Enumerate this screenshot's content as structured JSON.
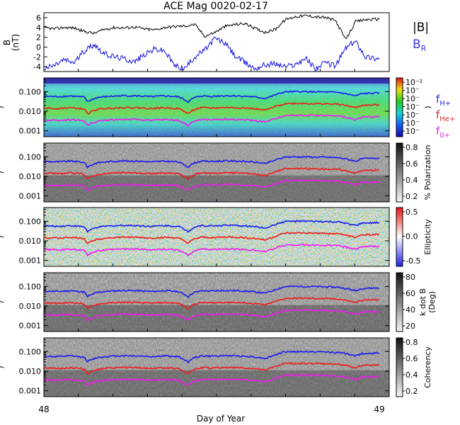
{
  "chart_data": [
    {
      "panel": "magnetic-field",
      "type": "line",
      "title": "ACE Mag 0020-02-17",
      "ylabel": "B (nT)",
      "ylim": [
        -5,
        7
      ],
      "yticks": [
        6,
        4,
        2,
        0,
        -2,
        -4
      ],
      "series": [
        {
          "name": "|B|",
          "color": "#000000",
          "x": [
            48.0,
            48.03,
            48.06,
            48.09,
            48.12,
            48.15,
            48.18,
            48.21,
            48.24,
            48.27,
            48.3,
            48.33,
            48.36,
            48.39,
            48.42,
            48.45,
            48.48,
            48.51,
            48.54,
            48.57,
            48.6,
            48.63,
            48.66,
            48.69,
            48.72,
            48.75,
            48.78,
            48.81,
            48.84,
            48.87,
            48.9,
            48.93,
            48.96,
            49.0
          ],
          "y": [
            4.0,
            3.7,
            4.0,
            3.9,
            3.2,
            2.8,
            3.6,
            4.0,
            3.9,
            4.1,
            3.7,
            3.5,
            4.0,
            4.2,
            4.3,
            4.6,
            2.2,
            3.0,
            4.2,
            4.6,
            4.8,
            3.8,
            3.0,
            3.6,
            5.6,
            6.2,
            6.4,
            6.2,
            6.0,
            5.4,
            1.5,
            5.2,
            5.6,
            5.7
          ]
        },
        {
          "name": "B_R",
          "color": "#1010e0",
          "x": [
            48.0,
            48.03,
            48.06,
            48.09,
            48.12,
            48.15,
            48.18,
            48.21,
            48.24,
            48.27,
            48.3,
            48.33,
            48.36,
            48.39,
            48.42,
            48.45,
            48.48,
            48.51,
            48.54,
            48.57,
            48.6,
            48.63,
            48.66,
            48.69,
            48.72,
            48.75,
            48.78,
            48.81,
            48.84,
            48.87,
            48.9,
            48.93,
            48.96,
            49.0
          ],
          "y": [
            -4.4,
            -3.8,
            -2.6,
            -3.2,
            -0.8,
            0.6,
            -1.4,
            -2.0,
            -2.4,
            -3.0,
            -1.6,
            -0.4,
            -0.8,
            -3.8,
            -4.4,
            -2.0,
            -0.6,
            1.8,
            0.8,
            -1.8,
            -3.2,
            -4.4,
            -3.6,
            -3.4,
            -4.0,
            -3.6,
            -2.2,
            -4.4,
            -3.2,
            -3.8,
            -0.2,
            1.2,
            -2.0,
            -2.4
          ]
        }
      ]
    },
    {
      "panel": "power",
      "type": "heatmap",
      "ylim": [
        0.0005,
        0.5
      ],
      "yscale": "log",
      "yticklabels": [
        "0.100",
        "0.010",
        "0.001"
      ],
      "colorbar_ticks": [
        "10⁻²",
        "10⁻",
        "10⁻",
        "10⁻",
        "10⁻",
        "10⁻",
        "10⁻"
      ],
      "colorbar_label": ")",
      "colorscale": "rainbow"
    },
    {
      "panel": "polarization",
      "type": "heatmap",
      "ylim": [
        0.0005,
        0.5
      ],
      "yscale": "log",
      "yticklabels": [
        "0.100",
        "0.010",
        "0.001"
      ],
      "colorbar_label": "% Polarization",
      "colorbar_ticks": [
        "0.8",
        "0.6",
        "0.4",
        "0.2"
      ],
      "colorscale": "gray"
    },
    {
      "panel": "ellipticity",
      "type": "heatmap",
      "ylim": [
        0.0005,
        0.5
      ],
      "yscale": "log",
      "yticklabels": [
        "0.100",
        "0.010",
        "0.001"
      ],
      "colorbar_label": "Ellipticity",
      "colorbar_ticks": [
        "0.5",
        "0.0",
        "-0.5"
      ],
      "colorscale": "blue-white-red"
    },
    {
      "panel": "k-dot-b",
      "type": "heatmap",
      "ylim": [
        0.0005,
        0.5
      ],
      "yscale": "log",
      "yticklabels": [
        "0.100",
        "0.010",
        "0.001"
      ],
      "colorbar_label": "k dot B",
      "colorbar_label2": "(Deg)",
      "colorbar_ticks": [
        "80",
        "60",
        "40",
        "20"
      ],
      "colorscale": "gray"
    },
    {
      "panel": "coherency",
      "type": "heatmap",
      "ylim": [
        0.0005,
        0.5
      ],
      "yscale": "log",
      "yticklabels": [
        "0.100",
        "0.010",
        "0.001"
      ],
      "colorbar_label": "Coherency",
      "colorbar_ticks": [
        "0.8",
        "0.6",
        "0.4",
        "0.2"
      ],
      "colorscale": "gray",
      "xlabel": "Day of Year",
      "xlim": [
        48,
        49
      ],
      "xticklabels": [
        "48",
        "49"
      ]
    }
  ],
  "legend": {
    "B": "|B|",
    "BR": "B",
    "BR_sub": "R",
    "fH": "f",
    "fH_sub": "H+",
    "fHe": "f",
    "fHe_sub": "He+",
    "fO": "f",
    "fO_sub": "0+"
  },
  "gyro_lines": {
    "comment_free": true,
    "x": [
      48.0,
      48.04,
      48.08,
      48.12,
      48.13,
      48.16,
      48.2,
      48.24,
      48.28,
      48.32,
      48.36,
      48.4,
      48.43,
      48.45,
      48.47,
      48.5,
      48.54,
      48.58,
      48.62,
      48.66,
      48.68,
      48.72,
      48.76,
      48.8,
      48.84,
      48.88,
      48.93,
      48.95,
      48.98,
      49.0
    ],
    "fH": [
      0.058,
      0.055,
      0.06,
      0.052,
      0.03,
      0.05,
      0.058,
      0.062,
      0.06,
      0.055,
      0.06,
      0.055,
      0.03,
      0.05,
      0.06,
      0.058,
      0.062,
      0.06,
      0.055,
      0.045,
      0.058,
      0.098,
      0.1,
      0.098,
      0.095,
      0.09,
      0.06,
      0.08,
      0.082,
      0.085
    ],
    "colors": {
      "fH": "#1a1af0",
      "fHe": "#f01a1a",
      "fO": "#f01af0"
    }
  }
}
